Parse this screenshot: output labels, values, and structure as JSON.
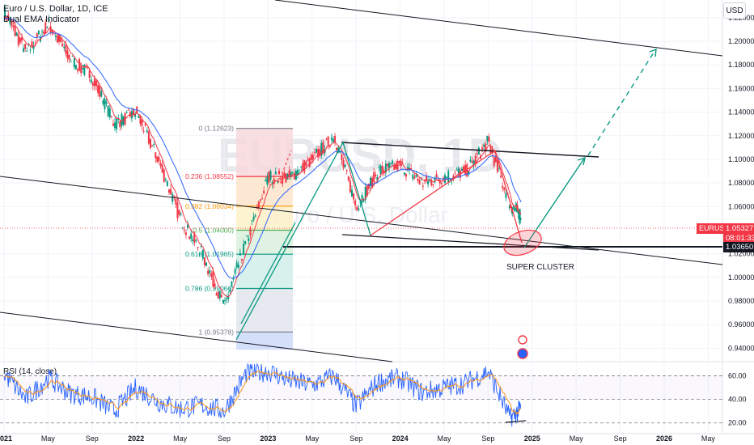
{
  "header": {
    "title": "Euro / U.S. Dollar, 1D, ICE",
    "indicator": "Dual EMA Indicator",
    "currency_button": "USD"
  },
  "watermark": {
    "symbol": "EURUSD, 1D",
    "name": "Euro / U.S. Dollar"
  },
  "rsi": {
    "label": "RSI (14, close)",
    "levels": [
      "60.00",
      "40.00",
      "20.00"
    ]
  },
  "price_axis": [
    "1.22000",
    "1.20000",
    "1.18000",
    "1.16000",
    "1.14000",
    "1.12000",
    "1.10000",
    "1.08000",
    "1.06000",
    "1.02000",
    "1.00000",
    "0.98000",
    "0.96000",
    "0.94000"
  ],
  "time_axis": [
    "2021",
    "May",
    "Sep",
    "2022",
    "May",
    "Sep",
    "2023",
    "May",
    "Sep",
    "2024",
    "May",
    "Sep",
    "2025",
    "May",
    "Sep",
    "2026",
    "May"
  ],
  "price_tags": {
    "symbol": "EURUSD",
    "last": "1.05327",
    "countdown": "08:01:33",
    "support": "1.03650"
  },
  "colors": {
    "up": "#089981",
    "down": "#f23645",
    "ema_fast": "#f23645",
    "ema_slow": "#2962ff",
    "rsi": "#2962ff",
    "rsi_ma": "#f7931a"
  },
  "fib_levels": [
    {
      "label": "0 (1.12623)",
      "price": 1.12623,
      "color": "#787b86"
    },
    {
      "label": "0.236 (1.08552)",
      "price": 1.08552,
      "color": "#f23645"
    },
    {
      "label": "0.382 (1.06034)",
      "price": 1.06034,
      "color": "#ff9800"
    },
    {
      "label": "0.5 (1.04000)",
      "price": 1.04,
      "color": "#4caf50"
    },
    {
      "label": "0.618 (1.01965)",
      "price": 1.01965,
      "color": "#089981"
    },
    {
      "label": "0.786 (0.99066)",
      "price": 0.99066,
      "color": "#089981"
    },
    {
      "label": "1 (0.95378)",
      "price": 0.95378,
      "color": "#787b86"
    }
  ],
  "annotation": "SUPER CLUSTER",
  "chart_data": {
    "type": "line",
    "title": "Euro / U.S. Dollar, 1D, ICE",
    "x": [
      "2021-01",
      "2021-03",
      "2021-05",
      "2021-07",
      "2021-09",
      "2021-11",
      "2022-01",
      "2022-03",
      "2022-05",
      "2022-07",
      "2022-09",
      "2022-11",
      "2023-01",
      "2023-03",
      "2023-05",
      "2023-07",
      "2023-09",
      "2023-11",
      "2024-01",
      "2024-03",
      "2024-05",
      "2024-07",
      "2024-09",
      "2024-11",
      "2024-12"
    ],
    "series": [
      {
        "name": "EURUSD",
        "values": [
          1.225,
          1.19,
          1.215,
          1.185,
          1.17,
          1.13,
          1.14,
          1.1,
          1.05,
          1.02,
          0.975,
          1.03,
          1.085,
          1.085,
          1.1,
          1.12,
          1.06,
          1.09,
          1.095,
          1.08,
          1.085,
          1.09,
          1.115,
          1.06,
          1.053
        ]
      }
    ],
    "ylim": [
      0.93,
      1.235
    ],
    "grid": true,
    "rsi": {
      "x": [
        "2021-01",
        "2021-03",
        "2021-05",
        "2021-07",
        "2021-09",
        "2021-11",
        "2022-01",
        "2022-03",
        "2022-05",
        "2022-07",
        "2022-09",
        "2022-11",
        "2023-01",
        "2023-03",
        "2023-05",
        "2023-07",
        "2023-09",
        "2023-11",
        "2024-01",
        "2024-03",
        "2024-05",
        "2024-07",
        "2024-09",
        "2024-11",
        "2024-12"
      ],
      "values": [
        62,
        40,
        58,
        45,
        42,
        30,
        50,
        38,
        32,
        35,
        30,
        62,
        64,
        56,
        52,
        60,
        34,
        55,
        58,
        46,
        50,
        54,
        64,
        24,
        32
      ],
      "levels": [
        60,
        40,
        20
      ]
    }
  }
}
